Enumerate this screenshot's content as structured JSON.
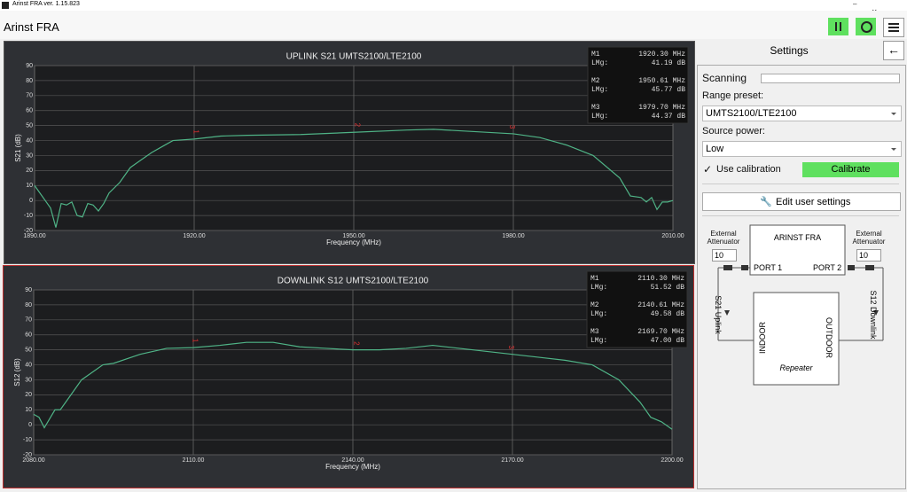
{
  "window": {
    "title": "Arinst FRA ver. 1.15.823"
  },
  "header": {
    "title": "Arinst FRA"
  },
  "chart_data": [
    {
      "type": "line",
      "title": "UPLINK S21 UMTS2100/LTE2100",
      "xlabel": "Frequency (MHz)",
      "ylabel": "S21 (dB)",
      "x": [
        1890,
        1891,
        1892,
        1893,
        1894,
        1895,
        1896,
        1897,
        1898,
        1899,
        1900,
        1901,
        1902,
        1903,
        1904,
        1906,
        1908,
        1910,
        1912,
        1914,
        1916,
        1918,
        1920,
        1925,
        1930,
        1940,
        1950,
        1960,
        1965,
        1970,
        1980,
        1985,
        1990,
        1995,
        2000,
        2002,
        2004,
        2005,
        2006,
        2007,
        2008,
        2009,
        2010
      ],
      "values": [
        10,
        5,
        0,
        -5,
        -18,
        -2,
        -3,
        -1,
        -10,
        -11,
        -2,
        -3,
        -7,
        -2,
        5,
        12,
        22,
        27,
        32,
        36,
        40,
        40.5,
        41,
        43,
        43.5,
        44,
        45.5,
        47,
        47.5,
        46.5,
        44.5,
        42,
        37,
        30,
        15,
        3,
        2,
        -1,
        2,
        -6,
        -1,
        -1,
        0
      ],
      "color": "#4fb386",
      "xlim": [
        1890,
        2010
      ],
      "xticks": [
        {
          "value": 1890,
          "label": "1890.00"
        },
        {
          "value": 1920,
          "label": "1920.00"
        },
        {
          "value": 1950,
          "label": "1950.00"
        },
        {
          "value": 1980,
          "label": "1980.00"
        },
        {
          "value": 2010,
          "label": "2010.00"
        }
      ],
      "ylim": [
        -20,
        90
      ],
      "yticks": [
        -20,
        -10,
        0,
        10,
        20,
        30,
        40,
        50,
        60,
        70,
        80,
        90
      ],
      "grid": true,
      "markers": [
        {
          "name": "M1",
          "id": "1",
          "x": 1920.3,
          "x_label": "1920.30 MHz",
          "mode": "LMg:",
          "value": 41.19,
          "value_label": "41.19 dB"
        },
        {
          "name": "M2",
          "id": "2",
          "x": 1950.61,
          "x_label": "1950.61 MHz",
          "mode": "LMg:",
          "value": 45.77,
          "value_label": "45.77 dB"
        },
        {
          "name": "M3",
          "id": "3",
          "x": 1979.7,
          "x_label": "1979.70 MHz",
          "mode": "LMg:",
          "value": 44.37,
          "value_label": "44.37 dB"
        }
      ]
    },
    {
      "type": "line",
      "title": "DOWNLINK S12 UMTS2100/LTE2100",
      "xlabel": "Frequency (MHz)",
      "ylabel": "S12 (dB)",
      "x": [
        2080,
        2081,
        2082,
        2084,
        2085,
        2087,
        2089,
        2091,
        2093,
        2095,
        2100,
        2105,
        2110,
        2115,
        2120,
        2125,
        2130,
        2135,
        2140,
        2145,
        2150,
        2155,
        2160,
        2165,
        2170,
        2175,
        2180,
        2185,
        2190,
        2194,
        2196,
        2198,
        2200
      ],
      "values": [
        7,
        5,
        -2,
        10,
        10,
        20,
        30,
        35,
        40,
        41,
        47,
        51,
        51.5,
        53,
        55,
        55,
        52,
        51,
        50,
        50,
        51,
        53,
        51,
        49,
        47,
        45,
        43,
        40,
        30,
        15,
        5,
        2,
        -3
      ],
      "color": "#4fb386",
      "xlim": [
        2080,
        2200
      ],
      "xticks": [
        {
          "value": 2080,
          "label": "2080.00"
        },
        {
          "value": 2110,
          "label": "2110.00"
        },
        {
          "value": 2140,
          "label": "2140.00"
        },
        {
          "value": 2170,
          "label": "2170.00"
        },
        {
          "value": 2200,
          "label": "2200.00"
        }
      ],
      "ylim": [
        -20,
        90
      ],
      "yticks": [
        -20,
        -10,
        0,
        10,
        20,
        30,
        40,
        50,
        60,
        70,
        80,
        90
      ],
      "grid": true,
      "markers": [
        {
          "name": "M1",
          "id": "1",
          "x": 2110.3,
          "x_label": "2110.30 MHz",
          "mode": "LMg:",
          "value": 51.52,
          "value_label": "51.52 dB"
        },
        {
          "name": "M2",
          "id": "2",
          "x": 2140.61,
          "x_label": "2140.61 MHz",
          "mode": "LMg:",
          "value": 49.58,
          "value_label": "49.58 dB"
        },
        {
          "name": "M3",
          "id": "3",
          "x": 2169.7,
          "x_label": "2169.70 MHz",
          "mode": "LMg:",
          "value": 47.0,
          "value_label": "47.00 dB"
        }
      ]
    }
  ],
  "settings": {
    "title": "Settings",
    "scanning": "Scanning",
    "range_preset_label": "Range preset:",
    "range_preset": "UMTS2100/LTE2100",
    "source_power_label": "Source power:",
    "source_power": "Low",
    "use_calibration": "Use calibration",
    "calibrate": "Calibrate",
    "edit_user_settings": "Edit user settings"
  },
  "diagram": {
    "left_attenuator": "External Attenuator",
    "left_value": 10,
    "right_attenuator": "External Attenuator",
    "right_value": 10,
    "device": "ARINST FRA",
    "port1": "PORT 1",
    "port2": "PORT 2",
    "uplink": "S21 Uplink",
    "downlink": "S12 Downlink",
    "indoor": "INDOOR",
    "outdoor": "OUTDOOR",
    "repeater": "Repeater"
  }
}
